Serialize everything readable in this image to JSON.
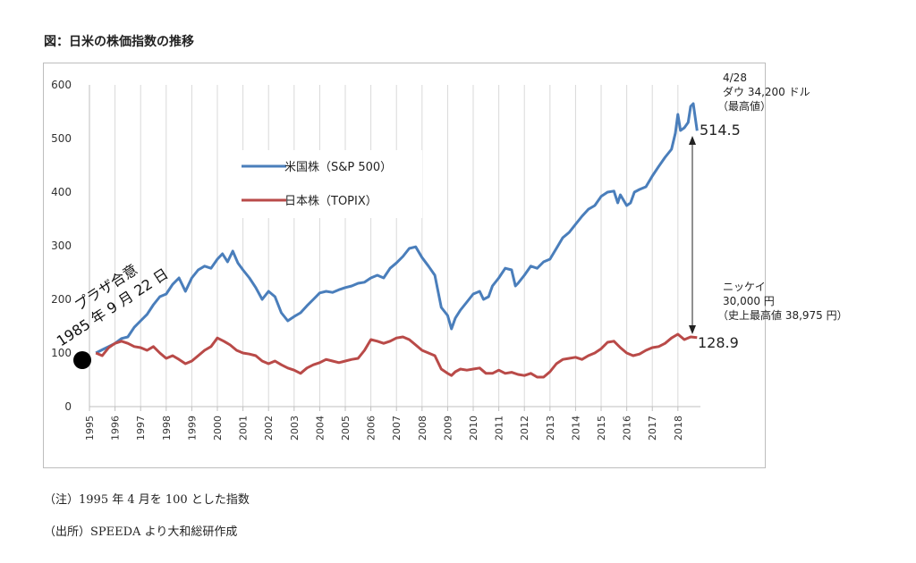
{
  "figure_title": "図：日米の株価指数の推移",
  "notes": {
    "note1": "（注）1995 年 4 月を 100 とした指数",
    "note2": "（出所）SPEEDA より大和総研作成"
  },
  "colors": {
    "us": "#4a7ebb",
    "jp": "#b94a48",
    "grid": "#d9d9d9",
    "axis": "#bfbfbf"
  },
  "annotations": {
    "plaza_line1": "プラザ合意",
    "plaza_line2": "1985 年 9 月 22 日",
    "dow_date": "4/28",
    "dow_value": "ダウ 34,200 ドル",
    "dow_note": "（最高値）",
    "us_end_value": "514.5",
    "jp_end_value": "128.9",
    "nikkei_label": "ニッケイ",
    "nikkei_value": "30,000 円",
    "nikkei_note": "（史上最高値 38,975 円）"
  },
  "chart_data": {
    "type": "line",
    "title": "",
    "xlabel": "",
    "ylabel": "",
    "ylim": [
      0,
      600
    ],
    "yticks": [
      "0",
      "100",
      "200",
      "300",
      "400",
      "500",
      "600"
    ],
    "xticks": [
      "1995",
      "1996",
      "1997",
      "1998",
      "1999",
      "2000",
      "2001",
      "2002",
      "2003",
      "2004",
      "2005",
      "2006",
      "2007",
      "2008",
      "2009",
      "2010",
      "2011",
      "2012",
      "2013",
      "2014",
      "2015",
      "2016",
      "2017",
      "2018"
    ],
    "grid": "vertical",
    "legend_position": "upper-left-center",
    "series": [
      {
        "name": "米国株（S&P 500）",
        "points": [
          [
            1995.25,
            100
          ],
          [
            1995.5,
            106
          ],
          [
            1995.75,
            112
          ],
          [
            1996,
            118
          ],
          [
            1996.25,
            127
          ],
          [
            1996.5,
            130
          ],
          [
            1996.75,
            148
          ],
          [
            1997,
            160
          ],
          [
            1997.25,
            172
          ],
          [
            1997.5,
            190
          ],
          [
            1997.75,
            205
          ],
          [
            1998,
            210
          ],
          [
            1998.25,
            228
          ],
          [
            1998.5,
            240
          ],
          [
            1998.75,
            215
          ],
          [
            1999,
            240
          ],
          [
            1999.25,
            255
          ],
          [
            1999.5,
            262
          ],
          [
            1999.75,
            258
          ],
          [
            2000,
            275
          ],
          [
            2000.2,
            285
          ],
          [
            2000.4,
            270
          ],
          [
            2000.6,
            290
          ],
          [
            2000.8,
            268
          ],
          [
            2001,
            255
          ],
          [
            2001.25,
            240
          ],
          [
            2001.5,
            222
          ],
          [
            2001.75,
            200
          ],
          [
            2002,
            215
          ],
          [
            2002.25,
            205
          ],
          [
            2002.5,
            175
          ],
          [
            2002.75,
            160
          ],
          [
            2003,
            168
          ],
          [
            2003.25,
            175
          ],
          [
            2003.5,
            188
          ],
          [
            2003.75,
            200
          ],
          [
            2004,
            212
          ],
          [
            2004.25,
            215
          ],
          [
            2004.5,
            213
          ],
          [
            2004.75,
            218
          ],
          [
            2005,
            222
          ],
          [
            2005.25,
            225
          ],
          [
            2005.5,
            230
          ],
          [
            2005.75,
            232
          ],
          [
            2006,
            240
          ],
          [
            2006.25,
            245
          ],
          [
            2006.5,
            240
          ],
          [
            2006.75,
            258
          ],
          [
            2007,
            268
          ],
          [
            2007.25,
            280
          ],
          [
            2007.5,
            295
          ],
          [
            2007.75,
            298
          ],
          [
            2008,
            278
          ],
          [
            2008.25,
            262
          ],
          [
            2008.5,
            245
          ],
          [
            2008.75,
            185
          ],
          [
            2009,
            170
          ],
          [
            2009.15,
            145
          ],
          [
            2009.3,
            165
          ],
          [
            2009.5,
            180
          ],
          [
            2009.75,
            195
          ],
          [
            2010,
            210
          ],
          [
            2010.25,
            215
          ],
          [
            2010.4,
            200
          ],
          [
            2010.6,
            205
          ],
          [
            2010.75,
            225
          ],
          [
            2011,
            240
          ],
          [
            2011.25,
            258
          ],
          [
            2011.5,
            255
          ],
          [
            2011.65,
            225
          ],
          [
            2011.75,
            230
          ],
          [
            2012,
            245
          ],
          [
            2012.25,
            262
          ],
          [
            2012.5,
            258
          ],
          [
            2012.75,
            270
          ],
          [
            2013,
            275
          ],
          [
            2013.25,
            295
          ],
          [
            2013.5,
            315
          ],
          [
            2013.75,
            325
          ],
          [
            2014,
            340
          ],
          [
            2014.25,
            355
          ],
          [
            2014.5,
            368
          ],
          [
            2014.75,
            375
          ],
          [
            2015,
            392
          ],
          [
            2015.25,
            400
          ],
          [
            2015.5,
            402
          ],
          [
            2015.65,
            380
          ],
          [
            2015.75,
            395
          ],
          [
            2016,
            375
          ],
          [
            2016.15,
            380
          ],
          [
            2016.3,
            400
          ],
          [
            2016.5,
            405
          ],
          [
            2016.75,
            410
          ],
          [
            2017,
            430
          ],
          [
            2017.25,
            448
          ],
          [
            2017.5,
            465
          ],
          [
            2017.75,
            480
          ],
          [
            2017.9,
            510
          ],
          [
            2018,
            545
          ],
          [
            2018.1,
            515
          ],
          [
            2018.25,
            520
          ],
          [
            2018.4,
            530
          ],
          [
            2018.5,
            560
          ],
          [
            2018.6,
            565
          ],
          [
            2018.75,
            514.5
          ]
        ]
      },
      {
        "name": "日本株（TOPIX）",
        "points": [
          [
            1995.25,
            100
          ],
          [
            1995.5,
            95
          ],
          [
            1995.75,
            110
          ],
          [
            1996,
            118
          ],
          [
            1996.25,
            122
          ],
          [
            1996.5,
            118
          ],
          [
            1996.75,
            112
          ],
          [
            1997,
            110
          ],
          [
            1997.25,
            105
          ],
          [
            1997.5,
            112
          ],
          [
            1997.75,
            100
          ],
          [
            1998,
            90
          ],
          [
            1998.25,
            95
          ],
          [
            1998.5,
            88
          ],
          [
            1998.75,
            80
          ],
          [
            1999,
            85
          ],
          [
            1999.25,
            95
          ],
          [
            1999.5,
            105
          ],
          [
            1999.75,
            112
          ],
          [
            2000,
            128
          ],
          [
            2000.25,
            122
          ],
          [
            2000.5,
            115
          ],
          [
            2000.75,
            105
          ],
          [
            2001,
            100
          ],
          [
            2001.25,
            98
          ],
          [
            2001.5,
            95
          ],
          [
            2001.75,
            85
          ],
          [
            2002,
            80
          ],
          [
            2002.25,
            85
          ],
          [
            2002.5,
            78
          ],
          [
            2002.75,
            72
          ],
          [
            2003,
            68
          ],
          [
            2003.25,
            62
          ],
          [
            2003.5,
            72
          ],
          [
            2003.75,
            78
          ],
          [
            2004,
            82
          ],
          [
            2004.25,
            88
          ],
          [
            2004.5,
            85
          ],
          [
            2004.75,
            82
          ],
          [
            2005,
            85
          ],
          [
            2005.25,
            88
          ],
          [
            2005.5,
            90
          ],
          [
            2005.75,
            105
          ],
          [
            2006,
            125
          ],
          [
            2006.25,
            122
          ],
          [
            2006.5,
            118
          ],
          [
            2006.75,
            122
          ],
          [
            2007,
            128
          ],
          [
            2007.25,
            130
          ],
          [
            2007.5,
            125
          ],
          [
            2007.75,
            115
          ],
          [
            2008,
            105
          ],
          [
            2008.25,
            100
          ],
          [
            2008.5,
            95
          ],
          [
            2008.75,
            70
          ],
          [
            2009,
            62
          ],
          [
            2009.15,
            58
          ],
          [
            2009.3,
            65
          ],
          [
            2009.5,
            70
          ],
          [
            2009.75,
            68
          ],
          [
            2010,
            70
          ],
          [
            2010.25,
            72
          ],
          [
            2010.5,
            62
          ],
          [
            2010.75,
            62
          ],
          [
            2011,
            68
          ],
          [
            2011.25,
            62
          ],
          [
            2011.5,
            64
          ],
          [
            2011.75,
            60
          ],
          [
            2012,
            58
          ],
          [
            2012.25,
            62
          ],
          [
            2012.5,
            55
          ],
          [
            2012.75,
            55
          ],
          [
            2013,
            65
          ],
          [
            2013.25,
            80
          ],
          [
            2013.5,
            88
          ],
          [
            2013.75,
            90
          ],
          [
            2014,
            92
          ],
          [
            2014.25,
            88
          ],
          [
            2014.5,
            95
          ],
          [
            2014.75,
            100
          ],
          [
            2015,
            108
          ],
          [
            2015.25,
            120
          ],
          [
            2015.5,
            122
          ],
          [
            2015.75,
            110
          ],
          [
            2016,
            100
          ],
          [
            2016.25,
            95
          ],
          [
            2016.5,
            98
          ],
          [
            2016.75,
            105
          ],
          [
            2017,
            110
          ],
          [
            2017.25,
            112
          ],
          [
            2017.5,
            118
          ],
          [
            2017.75,
            128
          ],
          [
            2018,
            135
          ],
          [
            2018.25,
            125
          ],
          [
            2018.5,
            130
          ],
          [
            2018.75,
            128.9
          ]
        ]
      }
    ]
  }
}
